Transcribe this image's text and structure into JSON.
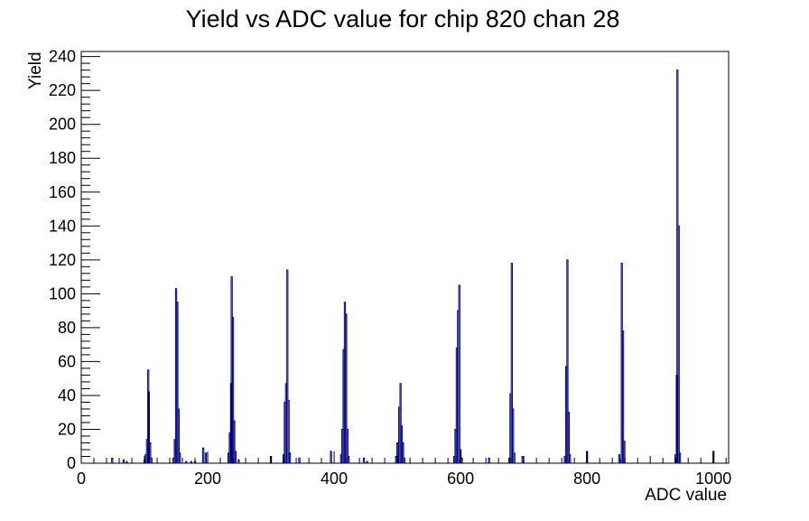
{
  "chart_data": {
    "type": "bar",
    "title": "Yield vs ADC value for chip 820 chan 28",
    "xlabel": "ADC value",
    "ylabel": "Yield",
    "xlim": [
      0,
      1024
    ],
    "ylim": [
      0,
      243
    ],
    "x_ticks": [
      0,
      200,
      400,
      600,
      800,
      1000
    ],
    "x_tick_labels": [
      "0",
      "200",
      "400",
      "600",
      "800",
      "1000"
    ],
    "y_ticks": [
      0,
      20,
      40,
      60,
      80,
      100,
      120,
      140,
      160,
      180,
      200,
      220,
      240
    ],
    "y_tick_labels": [
      "0",
      "20",
      "40",
      "60",
      "80",
      "100",
      "120",
      "140",
      "160",
      "180",
      "200",
      "220",
      "240"
    ],
    "series": [
      {
        "color": "#000080",
        "bins": [
          {
            "x": 49,
            "y": 3
          },
          {
            "x": 67,
            "y": 2
          },
          {
            "x": 72,
            "y": 1
          },
          {
            "x": 100,
            "y": 2
          },
          {
            "x": 102,
            "y": 5
          },
          {
            "x": 104,
            "y": 14
          },
          {
            "x": 106,
            "y": 55
          },
          {
            "x": 107,
            "y": 42
          },
          {
            "x": 109,
            "y": 12
          },
          {
            "x": 111,
            "y": 3
          },
          {
            "x": 146,
            "y": 3
          },
          {
            "x": 148,
            "y": 14
          },
          {
            "x": 150,
            "y": 103
          },
          {
            "x": 152,
            "y": 95
          },
          {
            "x": 154,
            "y": 32
          },
          {
            "x": 156,
            "y": 6
          },
          {
            "x": 166,
            "y": 1
          },
          {
            "x": 174,
            "y": 1
          },
          {
            "x": 180,
            "y": 1
          },
          {
            "x": 193,
            "y": 9
          },
          {
            "x": 197,
            "y": 6
          },
          {
            "x": 233,
            "y": 6
          },
          {
            "x": 235,
            "y": 18
          },
          {
            "x": 237,
            "y": 47
          },
          {
            "x": 238,
            "y": 110
          },
          {
            "x": 240,
            "y": 86
          },
          {
            "x": 242,
            "y": 25
          },
          {
            "x": 244,
            "y": 7
          },
          {
            "x": 249,
            "y": 2
          },
          {
            "x": 300,
            "y": 4
          },
          {
            "x": 320,
            "y": 5
          },
          {
            "x": 322,
            "y": 36
          },
          {
            "x": 324,
            "y": 47
          },
          {
            "x": 326,
            "y": 114
          },
          {
            "x": 328,
            "y": 37
          },
          {
            "x": 330,
            "y": 6
          },
          {
            "x": 345,
            "y": 3
          },
          {
            "x": 395,
            "y": 7
          },
          {
            "x": 411,
            "y": 5
          },
          {
            "x": 413,
            "y": 20
          },
          {
            "x": 415,
            "y": 67
          },
          {
            "x": 417,
            "y": 95
          },
          {
            "x": 419,
            "y": 88
          },
          {
            "x": 421,
            "y": 20
          },
          {
            "x": 423,
            "y": 4
          },
          {
            "x": 447,
            "y": 3
          },
          {
            "x": 452,
            "y": 1
          },
          {
            "x": 498,
            "y": 4
          },
          {
            "x": 500,
            "y": 12
          },
          {
            "x": 503,
            "y": 33
          },
          {
            "x": 505,
            "y": 47
          },
          {
            "x": 507,
            "y": 22
          },
          {
            "x": 509,
            "y": 12
          },
          {
            "x": 511,
            "y": 3
          },
          {
            "x": 590,
            "y": 4
          },
          {
            "x": 592,
            "y": 20
          },
          {
            "x": 594,
            "y": 68
          },
          {
            "x": 596,
            "y": 90
          },
          {
            "x": 598,
            "y": 105
          },
          {
            "x": 600,
            "y": 8
          },
          {
            "x": 602,
            "y": 3
          },
          {
            "x": 645,
            "y": 3
          },
          {
            "x": 677,
            "y": 3
          },
          {
            "x": 679,
            "y": 41
          },
          {
            "x": 681,
            "y": 118
          },
          {
            "x": 683,
            "y": 32
          },
          {
            "x": 685,
            "y": 6
          },
          {
            "x": 698,
            "y": 4
          },
          {
            "x": 765,
            "y": 4
          },
          {
            "x": 767,
            "y": 57
          },
          {
            "x": 769,
            "y": 120
          },
          {
            "x": 771,
            "y": 30
          },
          {
            "x": 773,
            "y": 5
          },
          {
            "x": 800,
            "y": 7
          },
          {
            "x": 851,
            "y": 5
          },
          {
            "x": 853,
            "y": 2
          },
          {
            "x": 855,
            "y": 118
          },
          {
            "x": 857,
            "y": 78
          },
          {
            "x": 859,
            "y": 13
          },
          {
            "x": 940,
            "y": 5
          },
          {
            "x": 942,
            "y": 52
          },
          {
            "x": 943,
            "y": 232
          },
          {
            "x": 945,
            "y": 140
          },
          {
            "x": 947,
            "y": 6
          },
          {
            "x": 1000,
            "y": 7
          }
        ]
      }
    ]
  }
}
